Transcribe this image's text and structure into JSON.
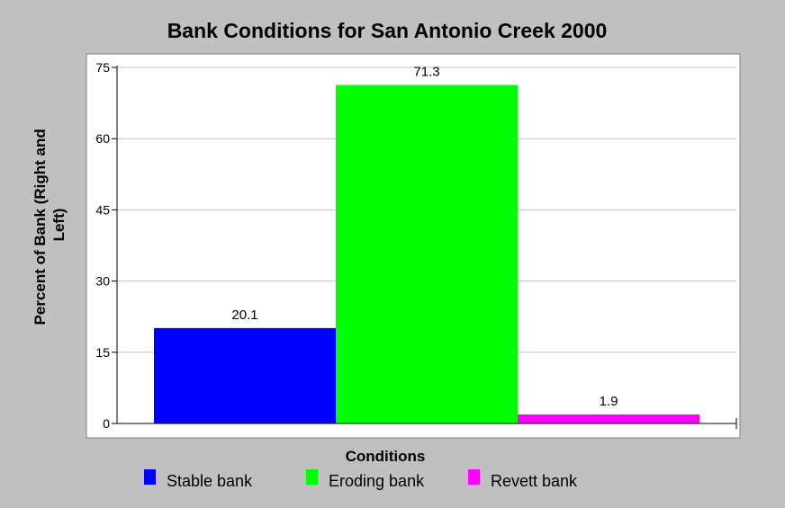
{
  "chart_data": {
    "type": "bar",
    "title": "Bank Conditions for San Antonio Creek 2000",
    "xlabel": "Conditions",
    "ylabel_lines": [
      "Percent of Bank (Right and",
      "Left)"
    ],
    "ylim": [
      0,
      75
    ],
    "yticks": [
      0,
      15,
      30,
      45,
      60,
      75
    ],
    "grid": true,
    "legend_position": "bottom",
    "series": [
      {
        "name": "Stable bank",
        "value": 20.1,
        "label": "20.1",
        "color": "#0000ff"
      },
      {
        "name": "Eroding bank",
        "value": 71.3,
        "label": "71.3",
        "color": "#00ff00"
      },
      {
        "name": "Revett bank",
        "value": 1.9,
        "label": "1.9",
        "color": "#ff00ff"
      }
    ]
  },
  "colors": {
    "page_background": "#c0c0c0",
    "plot_background": "#ffffff",
    "gridline": "#c0c0c0"
  }
}
